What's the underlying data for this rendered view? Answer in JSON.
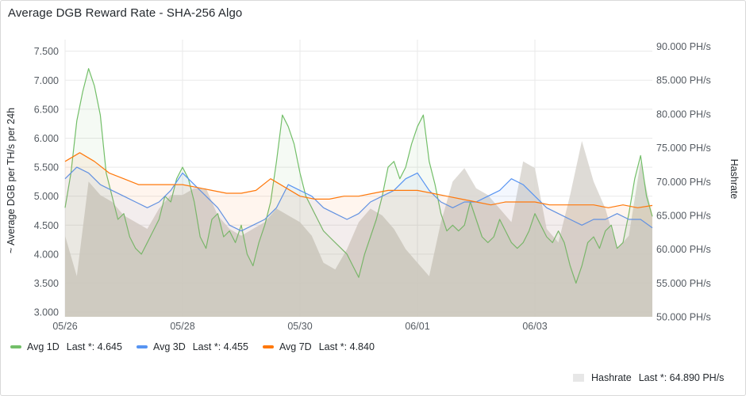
{
  "panel": {
    "title": "Average DGB Reward Rate - SHA-256 Algo"
  },
  "colors": {
    "avg1d": "#73bf69",
    "avg3d": "#5794f2",
    "avg7d": "#ff780a",
    "hashrate_fill": "#d8d5cf",
    "hashrate_legend": "#e7e7e7",
    "grid": "#e9e9e9"
  },
  "legend": {
    "items": [
      {
        "name": "Avg 1D",
        "last": "Last *: 4.645",
        "color_key": "avg1d"
      },
      {
        "name": "Avg 3D",
        "last": "Last *: 4.455",
        "color_key": "avg3d"
      },
      {
        "name": "Avg 7D",
        "last": "Last *: 4.840",
        "color_key": "avg7d"
      }
    ],
    "hashrate": {
      "name": "Hashrate",
      "last": "Last *: 64.890 PH/s"
    }
  },
  "chart_data": {
    "type": "line",
    "title": "Average DGB Reward Rate - SHA-256 Algo",
    "xlabel": "",
    "ylabel": "~ Average DGB per TH/s per 24h",
    "y2label": "Hashrate",
    "x_ticks": [
      "05/26",
      "05/28",
      "05/30",
      "06/01",
      "06/03"
    ],
    "y_ticks": [
      "3.000",
      "3.500",
      "4.000",
      "4.500",
      "5.000",
      "5.500",
      "6.000",
      "6.500",
      "7.000",
      "7.500"
    ],
    "y2_ticks": [
      "50.000 PH/s",
      "55.000 PH/s",
      "60.000 PH/s",
      "65.000 PH/s",
      "70.000 PH/s",
      "75.000 PH/s",
      "80.000 PH/s",
      "85.000 PH/s",
      "90.000 PH/s"
    ],
    "ylim": [
      2.92,
      7.7
    ],
    "y2lim": [
      50,
      91
    ],
    "xlim": [
      0,
      10.0
    ],
    "x_unit": "days since 05/26",
    "grid": true,
    "legend_position": "bottom",
    "series": [
      {
        "name": "Avg 1D",
        "axis": "left",
        "color_key": "avg1d",
        "x": [
          0.0,
          0.1,
          0.2,
          0.3,
          0.4,
          0.5,
          0.6,
          0.7,
          0.8,
          0.9,
          1.0,
          1.1,
          1.2,
          1.3,
          1.4,
          1.5,
          1.6,
          1.7,
          1.8,
          1.9,
          2.0,
          2.1,
          2.2,
          2.3,
          2.4,
          2.5,
          2.6,
          2.7,
          2.8,
          2.9,
          3.0,
          3.1,
          3.2,
          3.3,
          3.4,
          3.5,
          3.6,
          3.7,
          3.8,
          3.9,
          4.0,
          4.1,
          4.2,
          4.3,
          4.4,
          4.5,
          4.6,
          4.7,
          4.8,
          4.9,
          5.0,
          5.1,
          5.2,
          5.3,
          5.4,
          5.5,
          5.6,
          5.7,
          5.8,
          5.9,
          6.0,
          6.1,
          6.2,
          6.3,
          6.4,
          6.5,
          6.6,
          6.7,
          6.8,
          6.9,
          7.0,
          7.1,
          7.2,
          7.3,
          7.4,
          7.5,
          7.6,
          7.7,
          7.8,
          7.9,
          8.0,
          8.1,
          8.2,
          8.3,
          8.4,
          8.5,
          8.6,
          8.7,
          8.8,
          8.9,
          9.0,
          9.1,
          9.2,
          9.3,
          9.4,
          9.5,
          9.6,
          9.7,
          9.8,
          9.9,
          10.0
        ],
        "values": [
          4.8,
          5.4,
          6.3,
          6.8,
          7.2,
          6.9,
          6.4,
          5.4,
          5.0,
          4.6,
          4.7,
          4.3,
          4.1,
          4.0,
          4.2,
          4.4,
          4.6,
          5.0,
          4.9,
          5.3,
          5.5,
          5.3,
          4.9,
          4.3,
          4.1,
          4.6,
          4.7,
          4.3,
          4.4,
          4.2,
          4.5,
          4.0,
          3.8,
          4.2,
          4.5,
          4.9,
          5.6,
          6.4,
          6.2,
          5.9,
          5.4,
          5.0,
          4.8,
          4.6,
          4.4,
          4.3,
          4.2,
          4.1,
          4.0,
          3.8,
          3.6,
          4.0,
          4.3,
          4.6,
          5.0,
          5.5,
          5.6,
          5.3,
          5.5,
          5.9,
          6.2,
          6.4,
          5.6,
          5.2,
          4.7,
          4.4,
          4.5,
          4.4,
          4.5,
          4.9,
          4.6,
          4.3,
          4.2,
          4.3,
          4.6,
          4.4,
          4.2,
          4.1,
          4.2,
          4.4,
          4.7,
          4.5,
          4.3,
          4.2,
          4.4,
          4.2,
          3.8,
          3.5,
          3.8,
          4.2,
          4.3,
          4.1,
          4.4,
          4.5,
          4.1,
          4.2,
          4.7,
          5.3,
          5.7,
          5.0,
          4.65
        ]
      },
      {
        "name": "Avg 3D",
        "axis": "left",
        "color_key": "avg3d",
        "x": [
          0.0,
          0.2,
          0.4,
          0.6,
          0.8,
          1.0,
          1.2,
          1.4,
          1.6,
          1.8,
          2.0,
          2.2,
          2.4,
          2.6,
          2.8,
          3.0,
          3.2,
          3.4,
          3.6,
          3.8,
          4.0,
          4.2,
          4.4,
          4.6,
          4.8,
          5.0,
          5.2,
          5.4,
          5.6,
          5.8,
          6.0,
          6.2,
          6.4,
          6.6,
          6.8,
          7.0,
          7.2,
          7.4,
          7.6,
          7.8,
          8.0,
          8.2,
          8.4,
          8.6,
          8.8,
          9.0,
          9.2,
          9.4,
          9.6,
          9.8,
          10.0
        ],
        "values": [
          5.3,
          5.5,
          5.4,
          5.2,
          5.1,
          5.0,
          4.9,
          4.8,
          4.9,
          5.1,
          5.4,
          5.2,
          5.0,
          4.8,
          4.5,
          4.4,
          4.5,
          4.6,
          4.8,
          5.2,
          5.1,
          5.0,
          4.8,
          4.7,
          4.6,
          4.7,
          4.9,
          5.0,
          5.1,
          5.3,
          5.4,
          5.1,
          4.9,
          4.8,
          4.9,
          4.9,
          5.0,
          5.1,
          5.3,
          5.2,
          5.0,
          4.8,
          4.7,
          4.6,
          4.5,
          4.6,
          4.6,
          4.7,
          4.6,
          4.6,
          4.455
        ]
      },
      {
        "name": "Avg 7D",
        "axis": "left",
        "color_key": "avg7d",
        "x": [
          0.0,
          0.25,
          0.5,
          0.75,
          1.0,
          1.25,
          1.5,
          1.75,
          2.0,
          2.25,
          2.5,
          2.75,
          3.0,
          3.25,
          3.5,
          3.75,
          4.0,
          4.25,
          4.5,
          4.75,
          5.0,
          5.25,
          5.5,
          5.75,
          6.0,
          6.25,
          6.5,
          6.75,
          7.0,
          7.25,
          7.5,
          7.75,
          8.0,
          8.25,
          8.5,
          8.75,
          9.0,
          9.25,
          9.5,
          9.75,
          10.0
        ],
        "values": [
          5.6,
          5.75,
          5.6,
          5.4,
          5.3,
          5.2,
          5.2,
          5.2,
          5.2,
          5.15,
          5.1,
          5.05,
          5.05,
          5.1,
          5.3,
          5.15,
          5.0,
          4.95,
          4.95,
          5.0,
          5.0,
          5.05,
          5.1,
          5.1,
          5.1,
          5.05,
          5.0,
          4.95,
          4.9,
          4.85,
          4.9,
          4.9,
          4.9,
          4.85,
          4.85,
          4.85,
          4.85,
          4.8,
          4.85,
          4.8,
          4.84
        ]
      },
      {
        "name": "Hashrate",
        "axis": "right",
        "color_key": "hashrate_fill",
        "style": "area",
        "x": [
          0.0,
          0.2,
          0.4,
          0.6,
          0.8,
          1.0,
          1.2,
          1.4,
          1.6,
          1.8,
          2.0,
          2.2,
          2.4,
          2.6,
          2.8,
          3.0,
          3.2,
          3.4,
          3.6,
          3.8,
          4.0,
          4.2,
          4.4,
          4.6,
          4.8,
          5.0,
          5.2,
          5.4,
          5.6,
          5.8,
          6.0,
          6.2,
          6.4,
          6.6,
          6.8,
          7.0,
          7.2,
          7.4,
          7.6,
          7.8,
          8.0,
          8.2,
          8.4,
          8.6,
          8.8,
          9.0,
          9.2,
          9.4,
          9.6,
          9.8,
          10.0
        ],
        "values": [
          62,
          56,
          70,
          68,
          67,
          65,
          64,
          63,
          66,
          68,
          68,
          69,
          69,
          65,
          63,
          62,
          63,
          64,
          66,
          65,
          64,
          62,
          58,
          57,
          60,
          64,
          66,
          65,
          63,
          60,
          58,
          56,
          64,
          70,
          72,
          69,
          68,
          66,
          64,
          73,
          72,
          63,
          61,
          68,
          76,
          70,
          66,
          60,
          62,
          73,
          64.89
        ]
      }
    ]
  }
}
